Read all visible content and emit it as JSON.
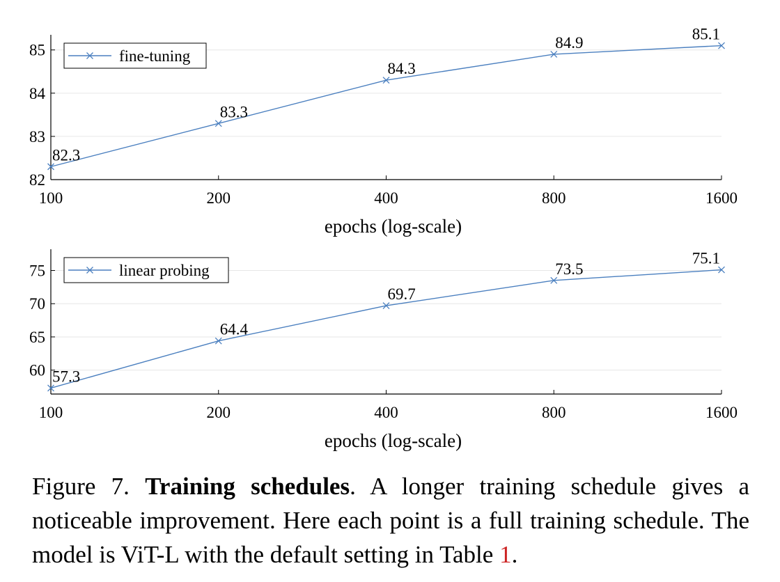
{
  "chart_data": [
    {
      "type": "line",
      "x": [
        100,
        200,
        400,
        800,
        1600
      ],
      "xscale": "log",
      "xlabel": "epochs (log-scale)",
      "xticks": [
        "100",
        "200",
        "400",
        "800",
        "1600"
      ],
      "yticks": [
        "82",
        "83",
        "84",
        "85"
      ],
      "ylim": [
        82,
        85.35
      ],
      "series": [
        {
          "name": "fine-tuning",
          "values": [
            82.3,
            83.3,
            84.3,
            84.9,
            85.1
          ],
          "labels": [
            "82.3",
            "83.3",
            "84.3",
            "84.9",
            "85.1"
          ]
        }
      ],
      "grid": "horizontal",
      "legend": "top-left"
    },
    {
      "type": "line",
      "x": [
        100,
        200,
        400,
        800,
        1600
      ],
      "xscale": "log",
      "xlabel": "epochs (log-scale)",
      "xticks": [
        "100",
        "200",
        "400",
        "800",
        "1600"
      ],
      "yticks": [
        "60",
        "65",
        "70",
        "75"
      ],
      "ylim": [
        56.4,
        78.2
      ],
      "series": [
        {
          "name": "linear probing",
          "values": [
            57.3,
            64.4,
            69.7,
            73.5,
            75.1
          ],
          "labels": [
            "57.3",
            "64.4",
            "69.7",
            "73.5",
            "75.1"
          ]
        }
      ],
      "grid": "horizontal",
      "legend": "top-left"
    }
  ],
  "colors": {
    "series": "#4a7fbf",
    "grid": "#e6e6e6",
    "axis": "#000000",
    "reference": "#cc2222"
  },
  "caption": {
    "figure_label": "Figure 7.",
    "bold_title": "Training schedules",
    "text": ". A longer training schedule gives a noticeable improvement. Here each point is a full training schedule. The model is ViT-L with the default setting in Table ",
    "ref": "1",
    "end": "."
  }
}
